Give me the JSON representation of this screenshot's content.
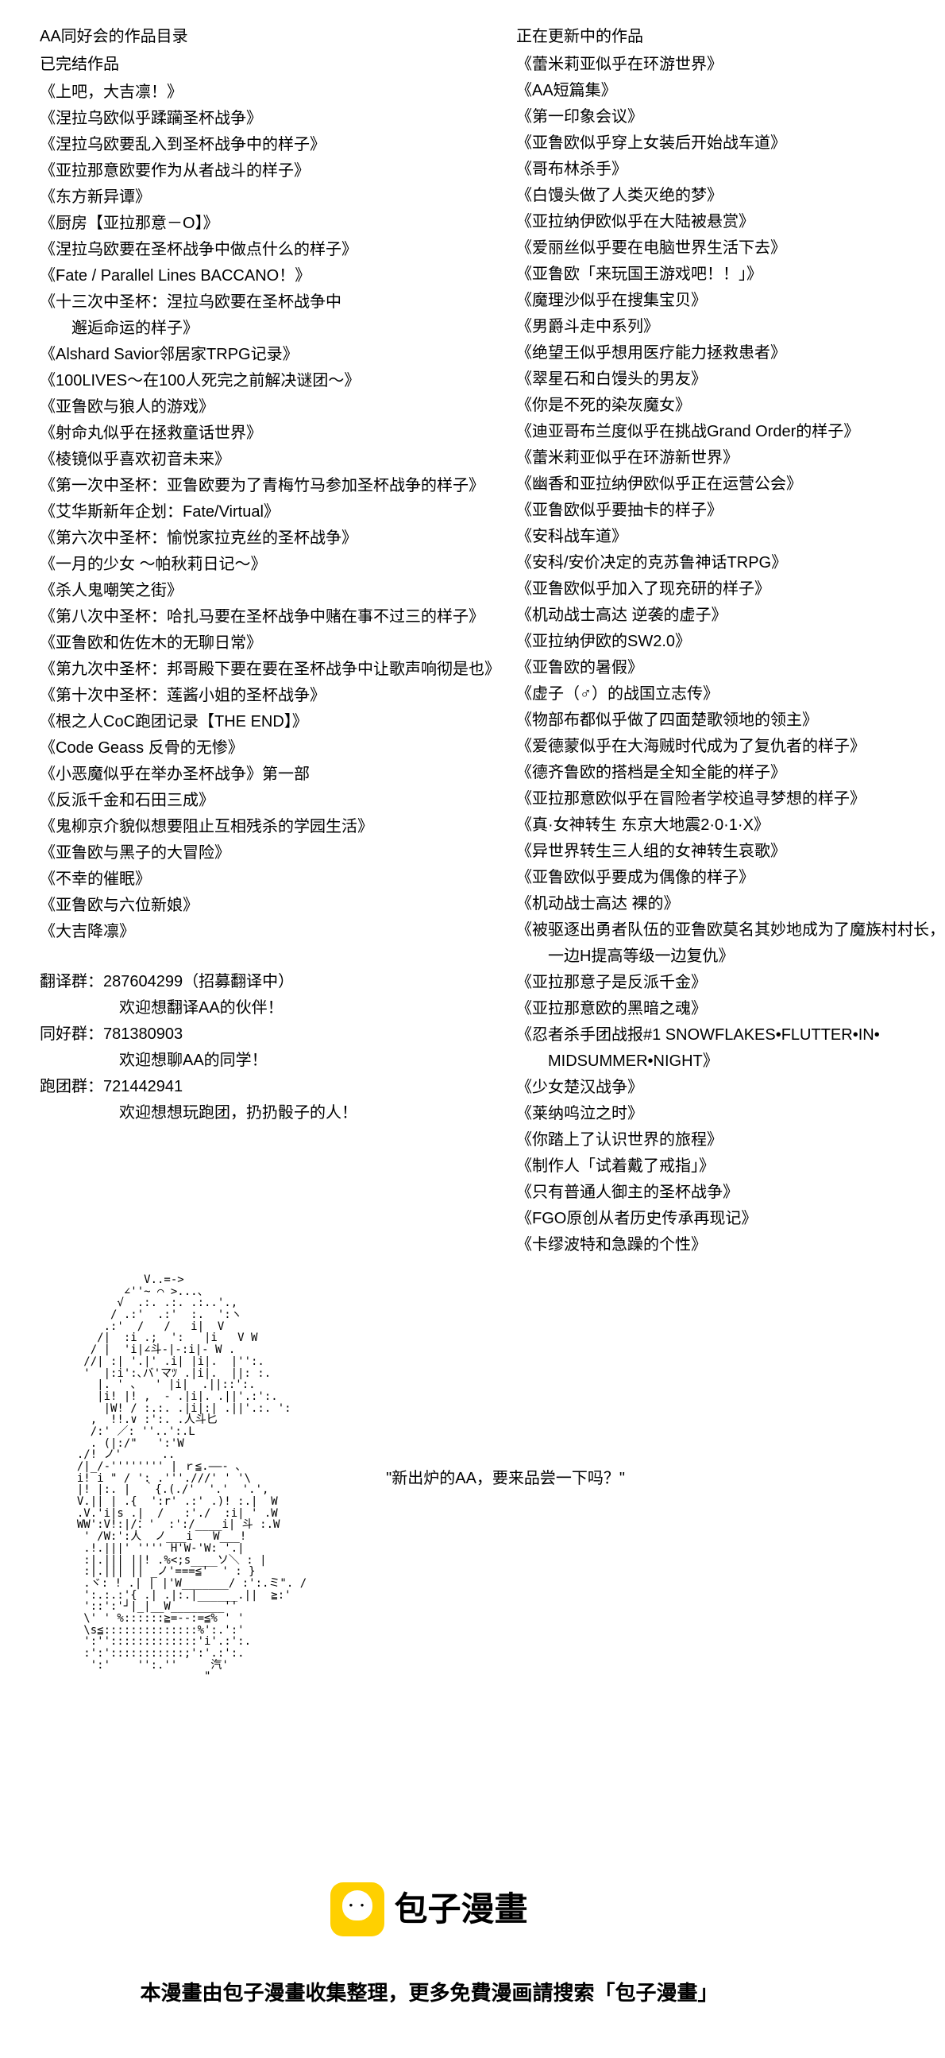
{
  "left": {
    "header": "AA同好会的作品目录",
    "completed_title": "已完结作品",
    "completed": [
      "《上吧，大吉凛！》",
      "《涅拉乌欧似乎蹂躏圣杯战争》",
      "《涅拉乌欧要乱入到圣杯战争中的样子》",
      "《亚拉那意欧要作为从者战斗的样子》",
      "《东方新异谭》",
      "《厨房【亚拉那意－O】》",
      "《涅拉乌欧要在圣杯战争中做点什么的样子》",
      "《Fate / Parallel Lines BACCANO！》",
      "《十三次中圣杯：涅拉乌欧要在圣杯战争中",
      "邂逅命运的样子》",
      "《Alshard Savior邻居家TRPG记录》",
      "《100LIVES～在100人死完之前解决谜团～》",
      "《亚鲁欧与狼人的游戏》",
      "《射命丸似乎在拯救童话世界》",
      "《棱镜似乎喜欢初音未来》",
      "《第一次中圣杯：亚鲁欧要为了青梅竹马参加圣杯战争的样子》",
      "《艾华斯新年企划：Fate/Virtual》",
      "《第六次中圣杯：愉悦家拉克丝的圣杯战争》",
      "《一月的少女 ～帕秋莉日记～》",
      "《杀人鬼嘲笑之街》",
      "《第八次中圣杯：哈扎马要在圣杯战争中赌在事不过三的样子》",
      "《亚鲁欧和佐佐木的无聊日常》",
      "《第九次中圣杯：邦哥殿下要在要在圣杯战争中让歌声响彻是也》",
      "《第十次中圣杯：莲酱小姐的圣杯战争》",
      "《根之人CoC跑团记录【THE END】》",
      "《Code Geass 反骨的无惨》",
      "《小恶魔似乎在举办圣杯战争》第一部",
      "《反派千金和石田三成》",
      "《鬼柳京介貌似想要阻止互相残杀的学园生活》",
      "《亚鲁欧与黑子的大冒险》",
      "《不幸的催眠》",
      "《亚鲁欧与六位新娘》",
      "《大吉降凛》"
    ],
    "groups": {
      "translate_label": "翻译群：",
      "translate_num": "287604299（招募翻译中）",
      "translate_sub": "欢迎想翻译AA的伙伴！",
      "fan_label": "同好群：",
      "fan_num": "781380903",
      "fan_sub": "欢迎想聊AA的同学！",
      "run_label": "跑团群：",
      "run_num": "721442941",
      "run_sub": "欢迎想想玩跑团，扔扔骰子的人！"
    }
  },
  "right": {
    "updating_title": "正在更新中的作品",
    "updating": [
      "《蕾米莉亚似乎在环游世界》",
      "《AA短篇集》",
      "《第一印象会议》",
      "《亚鲁欧似乎穿上女装后开始战车道》",
      "《哥布林杀手》",
      "《白馒头做了人类灭绝的梦》",
      "《亚拉纳伊欧似乎在大陆被悬赏》",
      "《爱丽丝似乎要在电脑世界生活下去》",
      "《亚鲁欧「来玩国王游戏吧！！」》",
      "《魔理沙似乎在搜集宝贝》",
      "《男爵斗走中系列》",
      "《绝望王似乎想用医疗能力拯救患者》",
      "《翠星石和白馒头的男友》",
      "《你是不死的染灰魔女》",
      "《迪亚哥布兰度似乎在挑战Grand Order的样子》",
      "《蕾米莉亚似乎在环游新世界》",
      "《幽香和亚拉纳伊欧似乎正在运营公会》",
      "《亚鲁欧似乎要抽卡的样子》",
      "《安科战车道》",
      "《安科/安价决定的克苏鲁神话TRPG》",
      "《亚鲁欧似乎加入了现充研的样子》",
      "《机动战士高达 逆袭的虚子》",
      "《亚拉纳伊欧的SW2.0》",
      "《亚鲁欧的暑假》",
      "《虚子（♂）的战国立志传》",
      "《物部布都似乎做了四面楚歌领地的领主》",
      "《爱德蒙似乎在大海贼时代成为了复仇者的样子》",
      "《德齐鲁欧的搭档是全知全能的样子》",
      "《亚拉那意欧似乎在冒险者学校追寻梦想的样子》",
      "《真·女神转生 东京大地震2·0·1·X》",
      "《异世界转生三人组的女神转生哀歌》",
      "《亚鲁欧似乎要成为偶像的样子》",
      "《机动战士高达 裸的》",
      "《被驱逐出勇者队伍的亚鲁欧莫名其妙地成为了魔族村村长，",
      "一边H提高等级一边复仇》",
      "《亚拉那意子是反派千金》",
      "《亚拉那意欧的黑暗之魂》",
      "《忍者杀手团战报#1 SNOWFLAKES•FLUTTER•IN•",
      "MIDSUMMER•NIGHT》",
      "《少女楚汉战争》",
      "《莱纳呜泣之时》",
      "《你踏上了认识世界的旅程》",
      "《制作人「试着戴了戒指」》",
      "《只有普通人御主的圣杯战争》",
      "《FGO原创从者历史传承再现记》",
      "《卡缪波特和急躁的个性》"
    ]
  },
  "quote": "\"新出炉的AA，要来品尝一下吗？\"",
  "ascii": "            V..=->\n         ∠''~ ⌒ >...、\n        √  .:. .:. .:..'.,\n       / .:'  .:'  :.  ':ヽ\n      .:'  /   /   i|  V\n     /|  :i .;  ':   |i   V W\n    / |  'i|∠斗-|-:i|- W .\n   //| :| '.|' .i| |i|.  |'':.\n   '  |:i':､バ'マﾂ .|i|.  ||: :.\n     |. ' 、  ' |i|  .||::':.\n     |i! |! ,  - .|i|. .||'.:':.\n      |W! / :.:. .|i|:| .||'.:. ':\n    ,  !!.∨ :':. .人斗匕\n    /:' ／: ''..':.L\n    . (|:/\"   ':'W\n  ./! ノ'      ..\n  /|_/-'''''''' | ｒ≦.――‐ 、\n  i! i \" / ': .'''.///' ' '\\\n  |! |:. |  ｀{.(./'  '.'  '.',\n  V.|| | .{  ':r' .:' .)! :.|  W\n  .V.'i|s .|  /   :'./  :i| ' .W\n  WW':V!:|/：'  :':/____i| 斗 :.W\n   ' /W:':人  ノ___i   W___!\n   .!.|||' '''' H'W-'W: '.|\n   :|.||| ||! .%<;s____ソ＼ : |\n   :|.||| || _ノ'===≦'  ' : }\n   .ヾ: ! .| | |'W_______/ :':.ミ\". /\n   ':.:.:'{ .| .|:.|______.||  ≧:'\n   '::':'┘|_|__W________''\n   \\' ' %::::::≧=‐‐:=≦% ' '\n   \\s≦::::::::::::::%':.':'\n   ':'':::::::::::::'i'.:':.\n   :':':::::::::::;':'.:':.\n    ':'    '':.''     汽'\n                     \"",
  "footer": {
    "logo_text": "包子漫畫",
    "text": "本漫畫由包子漫畫收集整理，更多免費漫画請搜索「包子漫畫」"
  },
  "colors": {
    "text": "#000000",
    "bg": "#ffffff",
    "logo_bg": "#ffd000"
  }
}
